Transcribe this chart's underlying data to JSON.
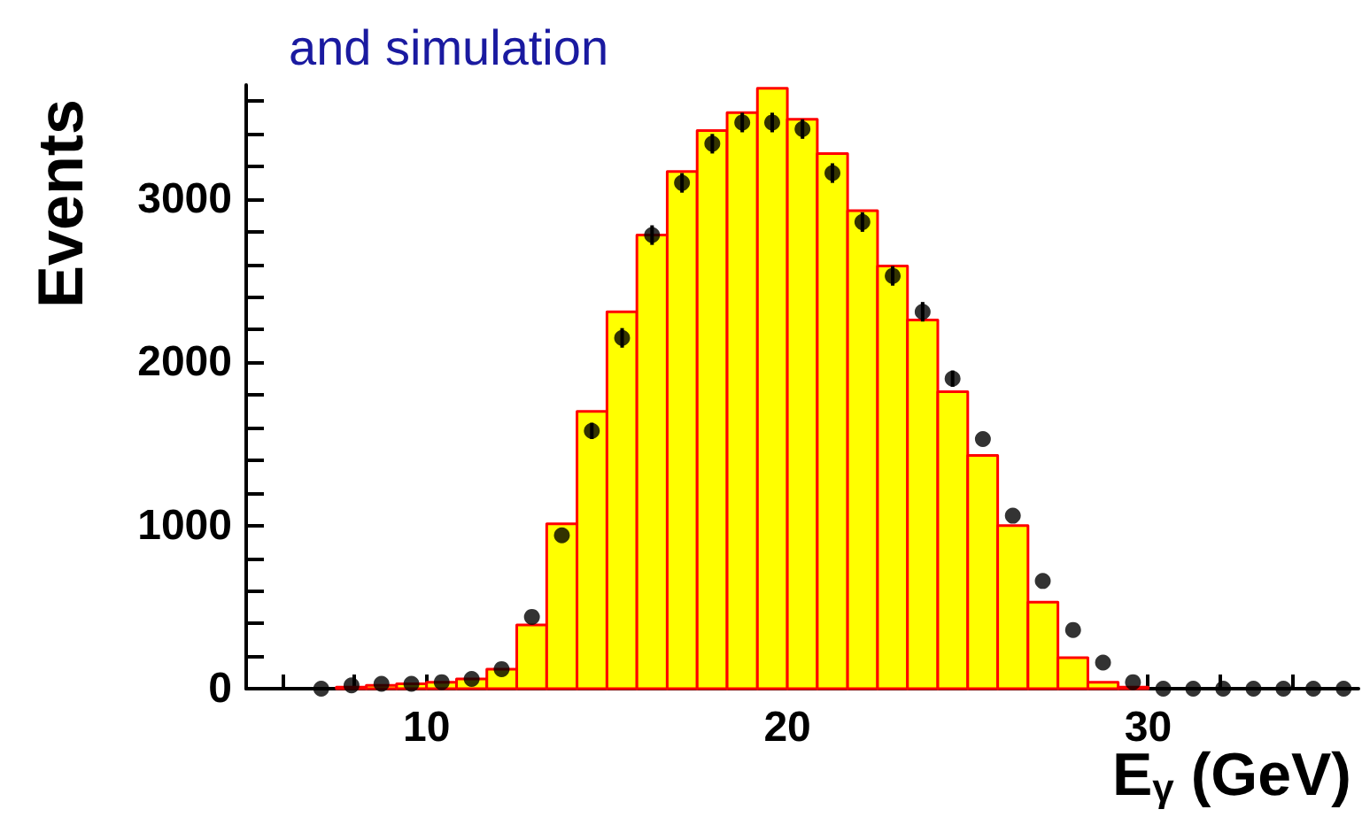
{
  "chart_data": {
    "type": "histogram",
    "title": "and simulation",
    "xlabel": "E$_{γ}$ (GeV)",
    "ylabel": "Events",
    "bins": [
      5,
      5.83,
      6.67,
      7.5,
      8.33,
      9.17,
      10,
      10.83,
      11.67,
      12.5,
      13.33,
      14.17,
      15,
      15.83,
      16.67,
      17.5,
      18.33,
      19.17,
      20,
      20.83,
      21.67,
      22.5,
      23.33,
      24.17,
      25,
      25.83,
      26.67,
      27.5,
      28.33,
      29.17,
      30,
      30.83,
      31.67,
      32.5,
      33.33,
      34.17,
      35,
      35.83
    ],
    "series": [
      {
        "color": "#ffff00",
        "values": [
          0,
          0,
          0,
          10,
          20,
          30,
          40,
          60,
          120,
          390,
          1010,
          1700,
          2310,
          2780,
          3170,
          3420,
          3530,
          3680,
          3490,
          3280,
          2930,
          2590,
          2260,
          1820,
          1430,
          1000,
          530,
          190,
          40,
          10,
          0,
          0,
          0,
          0,
          0,
          0,
          0
        ]
      },
      {
        "type": "scatter",
        "color": "#000000",
        "x": [
          7.08,
          7.92,
          8.75,
          9.58,
          10.42,
          11.25,
          12.08,
          12.92,
          13.75,
          14.58,
          15.42,
          16.25,
          17.08,
          17.92,
          18.75,
          19.58,
          20.42,
          21.25,
          22.08,
          22.92,
          23.75,
          24.58,
          25.42,
          26.25,
          27.08,
          27.92,
          28.75,
          29.58,
          30.42,
          31.25,
          32.08,
          32.92,
          33.75,
          34.58,
          35.42
        ],
        "values": [
          0,
          20,
          30,
          30,
          40,
          60,
          120,
          440,
          940,
          1580,
          2150,
          2780,
          3100,
          3340,
          3470,
          3470,
          3430,
          3160,
          2860,
          2530,
          2310,
          1900,
          1530,
          1060,
          660,
          360,
          160,
          40,
          0,
          0,
          0,
          0,
          0,
          0,
          0
        ],
        "errors": [
          null,
          null,
          null,
          null,
          null,
          null,
          null,
          null,
          null,
          50,
          60,
          60,
          60,
          60,
          60,
          60,
          60,
          60,
          60,
          60,
          60,
          50,
          null,
          null,
          null,
          null,
          null,
          null,
          null,
          null,
          null,
          null,
          null,
          null,
          null
        ]
      }
    ],
    "xlim": [
      5,
      35.83
    ],
    "xticks": [
      {
        "value": 6,
        "label": null
      },
      {
        "value": 8,
        "label": null
      },
      10,
      {
        "value": 12,
        "label": null
      },
      {
        "value": 14,
        "label": null
      },
      {
        "value": 16,
        "label": null
      },
      {
        "value": 18,
        "label": null
      },
      20,
      {
        "value": 22,
        "label": null
      },
      {
        "value": 24,
        "label": null
      },
      {
        "value": 26,
        "label": null
      },
      {
        "value": 28,
        "label": null
      },
      30,
      {
        "value": 32,
        "label": null
      },
      {
        "value": 34,
        "label": null
      }
    ],
    "ylim": [
      0,
      3700
    ],
    "yticks": [
      0,
      {
        "value": 200,
        "label": null
      },
      {
        "value": 400,
        "label": null
      },
      {
        "value": 600,
        "label": null
      },
      {
        "value": 800,
        "label": null
      },
      1000,
      {
        "value": 1200,
        "label": null
      },
      {
        "value": 1400,
        "label": null
      },
      {
        "value": 1600,
        "label": null
      },
      {
        "value": 1800,
        "label": null
      },
      2000,
      {
        "value": 2200,
        "label": null
      },
      {
        "value": 2400,
        "label": null
      },
      {
        "value": 2600,
        "label": null
      },
      {
        "value": 2800,
        "label": null
      },
      3000,
      {
        "value": 3200,
        "label": null
      },
      {
        "value": 3400,
        "label": null
      },
      {
        "value": 3600,
        "label": null
      }
    ]
  }
}
